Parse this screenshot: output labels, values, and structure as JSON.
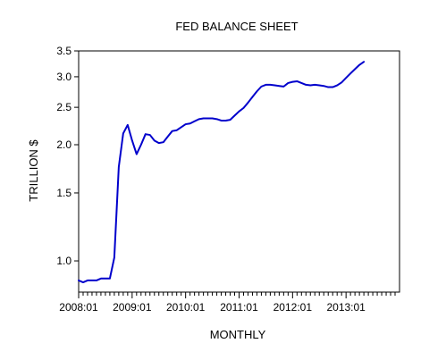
{
  "chart_data": {
    "type": "line",
    "title": "FED BALANCE SHEET",
    "xlabel": "MONTHLY",
    "ylabel": "TRILLION $",
    "y_scale": "log",
    "ylim": [
      0.83,
      3.5
    ],
    "xlim": [
      "2008-01",
      "2014-01"
    ],
    "grid": false,
    "y_ticks": [
      {
        "value": 1.0,
        "label": "1.0"
      },
      {
        "value": 1.5,
        "label": "1.5"
      },
      {
        "value": 2.0,
        "label": "2.0"
      },
      {
        "value": 2.5,
        "label": "2.5"
      },
      {
        "value": 3.0,
        "label": "3.0"
      },
      {
        "value": 3.5,
        "label": "3.5"
      }
    ],
    "x_ticks": [
      {
        "value": "2008-01",
        "label": "2008:01"
      },
      {
        "value": "2009-01",
        "label": "2009:01"
      },
      {
        "value": "2010-01",
        "label": "2010:01"
      },
      {
        "value": "2011-01",
        "label": "2011:01"
      },
      {
        "value": "2012-01",
        "label": "2012:01"
      },
      {
        "value": "2013-01",
        "label": "2013:01"
      }
    ],
    "series": [
      {
        "color": "#0000cc",
        "x": [
          "2008-01",
          "2008-02",
          "2008-03",
          "2008-04",
          "2008-05",
          "2008-06",
          "2008-07",
          "2008-08",
          "2008-09",
          "2008-10",
          "2008-11",
          "2008-12",
          "2009-01",
          "2009-02",
          "2009-03",
          "2009-04",
          "2009-05",
          "2009-06",
          "2009-07",
          "2009-08",
          "2009-09",
          "2009-10",
          "2009-11",
          "2009-12",
          "2010-01",
          "2010-02",
          "2010-03",
          "2010-04",
          "2010-05",
          "2010-06",
          "2010-07",
          "2010-08",
          "2010-09",
          "2010-10",
          "2010-11",
          "2010-12",
          "2011-01",
          "2011-02",
          "2011-03",
          "2011-04",
          "2011-05",
          "2011-06",
          "2011-07",
          "2011-08",
          "2011-09",
          "2011-10",
          "2011-11",
          "2011-12",
          "2012-01",
          "2012-02",
          "2012-03",
          "2012-04",
          "2012-05",
          "2012-06",
          "2012-07",
          "2012-08",
          "2012-09",
          "2012-10",
          "2012-11",
          "2012-12",
          "2013-01",
          "2013-02",
          "2013-03",
          "2013-04",
          "2013-05"
        ],
        "values": [
          0.89,
          0.88,
          0.89,
          0.89,
          0.89,
          0.9,
          0.9,
          0.9,
          1.02,
          1.75,
          2.14,
          2.25,
          2.05,
          1.89,
          2.0,
          2.13,
          2.12,
          2.05,
          2.02,
          2.03,
          2.1,
          2.17,
          2.18,
          2.22,
          2.26,
          2.27,
          2.3,
          2.33,
          2.34,
          2.34,
          2.34,
          2.33,
          2.31,
          2.31,
          2.32,
          2.38,
          2.44,
          2.49,
          2.57,
          2.66,
          2.75,
          2.83,
          2.86,
          2.86,
          2.85,
          2.84,
          2.83,
          2.89,
          2.91,
          2.92,
          2.89,
          2.86,
          2.85,
          2.86,
          2.85,
          2.84,
          2.82,
          2.82,
          2.85,
          2.9,
          2.98,
          3.06,
          3.14,
          3.22,
          3.28
        ]
      }
    ]
  }
}
